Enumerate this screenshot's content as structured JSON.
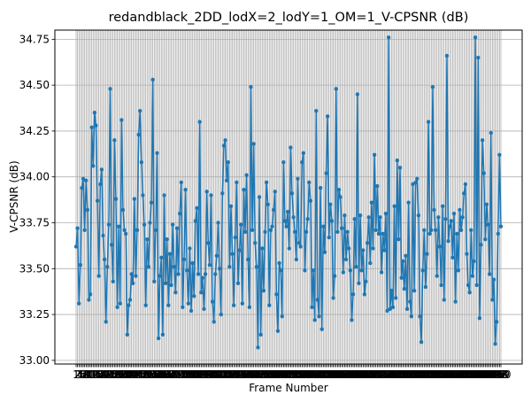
{
  "chart_data": {
    "type": "line",
    "title": "redandblack_2DD_lodX=2_lodY=1_OM=1_V-CPSNR (dB)",
    "xlabel": "Frame Number",
    "ylabel": "V-CPSNR (dB)",
    "ylim": [
      32.98,
      34.8
    ],
    "y_ticks": [
      "33.00",
      "33.25",
      "33.50",
      "33.75",
      "34.00",
      "34.25",
      "34.50",
      "34.75"
    ],
    "x_tick_labels_note": "Frame 1 to 300; tick labels overlap into an illegible band",
    "grid": true,
    "line_color": "#1f77b4",
    "x_first": 1,
    "values": [
      33.62,
      33.72,
      33.31,
      33.52,
      33.94,
      33.99,
      33.71,
      33.98,
      33.82,
      33.33,
      33.36,
      34.27,
      34.06,
      34.35,
      34.28,
      33.87,
      33.46,
      33.96,
      34.04,
      33.68,
      33.55,
      33.21,
      33.51,
      33.74,
      34.48,
      33.63,
      33.43,
      34.2,
      33.88,
      33.29,
      33.73,
      33.31,
      34.31,
      33.82,
      33.71,
      33.69,
      33.14,
      33.3,
      33.33,
      33.47,
      33.42,
      33.88,
      33.46,
      33.71,
      34.23,
      34.36,
      34.08,
      33.9,
      33.74,
      33.3,
      33.66,
      33.51,
      33.75,
      33.86,
      34.53,
      33.43,
      33.71,
      34.13,
      33.12,
      33.46,
      33.56,
      33.14,
      33.9,
      33.42,
      33.66,
      33.3,
      33.58,
      33.41,
      33.74,
      33.51,
      33.37,
      33.72,
      33.47,
      33.8,
      33.97,
      33.29,
      33.55,
      33.93,
      33.49,
      33.31,
      33.61,
      33.27,
      33.53,
      33.35,
      33.76,
      33.83,
      33.47,
      34.3,
      33.37,
      33.45,
      33.28,
      33.47,
      33.92,
      33.64,
      33.52,
      33.9,
      33.32,
      33.21,
      33.47,
      33.57,
      33.75,
      33.5,
      33.25,
      33.91,
      34.17,
      34.2,
      33.98,
      34.08,
      33.51,
      33.84,
      33.58,
      33.3,
      33.67,
      33.97,
      33.42,
      33.6,
      33.74,
      33.31,
      33.93,
      33.7,
      34.01,
      33.55,
      33.29,
      34.49,
      33.71,
      34.18,
      33.64,
      33.51,
      33.07,
      33.89,
      33.14,
      33.61,
      33.38,
      33.7,
      33.97,
      33.85,
      33.3,
      33.71,
      33.73,
      33.82,
      33.92,
      33.36,
      33.16,
      33.53,
      33.49,
      33.24,
      34.08,
      33.76,
      33.73,
      33.81,
      33.61,
      34.16,
      33.91,
      33.78,
      33.7,
      33.55,
      33.99,
      33.64,
      33.62,
      34.08,
      34.13,
      33.49,
      33.7,
      33.77,
      33.97,
      33.87,
      33.29,
      33.49,
      33.22,
      34.36,
      33.33,
      33.24,
      33.94,
      33.17,
      33.73,
      33.59,
      34.02,
      34.33,
      33.67,
      33.85,
      33.76,
      33.34,
      33.46,
      34.48,
      33.7,
      33.93,
      33.89,
      33.72,
      33.48,
      33.79,
      33.55,
      33.7,
      33.61,
      33.49,
      33.22,
      33.36,
      33.77,
      33.51,
      34.45,
      33.42,
      33.79,
      33.49,
      33.6,
      33.36,
      33.43,
      33.64,
      33.78,
      33.53,
      33.86,
      33.61,
      34.12,
      33.71,
      33.95,
      33.69,
      33.78,
      33.48,
      33.69,
      33.6,
      33.8,
      33.27,
      34.76,
      33.28,
      33.38,
      33.29,
      33.84,
      33.34,
      34.09,
      33.66,
      34.05,
      33.45,
      33.54,
      33.39,
      33.57,
      33.28,
      33.86,
      33.32,
      33.24,
      33.96,
      33.38,
      33.97,
      33.99,
      33.79,
      33.24,
      33.1,
      33.49,
      33.71,
      33.4,
      33.58,
      34.3,
      33.69,
      33.71,
      34.49,
      33.82,
      33.71,
      33.46,
      33.78,
      33.62,
      33.41,
      33.84,
      33.33,
      33.77,
      34.66,
      33.65,
      33.73,
      33.76,
      33.56,
      33.8,
      33.32,
      33.69,
      33.49,
      33.82,
      33.71,
      33.78,
      33.91,
      33.96,
      33.58,
      33.41,
      33.37,
      33.71,
      33.46,
      33.54,
      34.76,
      33.41,
      34.65,
      33.23,
      33.63,
      34.2,
      34.02,
      33.66,
      33.85,
      33.74,
      33.47,
      34.24,
      33.33,
      33.44,
      33.09,
      33.21,
      33.69,
      34.12,
      33.73
    ]
  }
}
